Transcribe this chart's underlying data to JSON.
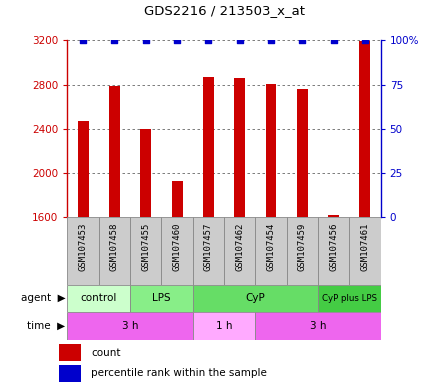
{
  "title": "GDS2216 / 213503_x_at",
  "samples": [
    "GSM107453",
    "GSM107458",
    "GSM107455",
    "GSM107460",
    "GSM107457",
    "GSM107462",
    "GSM107454",
    "GSM107459",
    "GSM107456",
    "GSM107461"
  ],
  "counts": [
    2470,
    2790,
    2395,
    1930,
    2870,
    2855,
    2805,
    2760,
    1620,
    3195
  ],
  "percentile": [
    100,
    100,
    100,
    100,
    100,
    100,
    100,
    100,
    100,
    100
  ],
  "ylim_left": [
    1600,
    3200
  ],
  "ylim_right": [
    0,
    100
  ],
  "yticks_left": [
    1600,
    2000,
    2400,
    2800,
    3200
  ],
  "yticks_right": [
    0,
    25,
    50,
    75,
    100
  ],
  "bar_color": "#cc0000",
  "dot_color": "#0000cc",
  "agent_groups": [
    {
      "label": "control",
      "start": 0,
      "end": 2,
      "color": "#ccffcc"
    },
    {
      "label": "LPS",
      "start": 2,
      "end": 4,
      "color": "#88ee88"
    },
    {
      "label": "CyP",
      "start": 4,
      "end": 8,
      "color": "#66dd66"
    },
    {
      "label": "CyP plus LPS",
      "start": 8,
      "end": 10,
      "color": "#44cc44"
    }
  ],
  "time_groups": [
    {
      "label": "3 h",
      "start": 0,
      "end": 4,
      "color": "#ee66ee"
    },
    {
      "label": "1 h",
      "start": 4,
      "end": 6,
      "color": "#ffaaff"
    },
    {
      "label": "3 h",
      "start": 6,
      "end": 10,
      "color": "#ee66ee"
    }
  ],
  "legend_count_color": "#cc0000",
  "legend_dot_color": "#0000cc",
  "grid_color": "#666666",
  "left_tick_color": "#cc0000",
  "right_tick_color": "#0000cc",
  "sample_box_color": "#cccccc",
  "sample_box_edge": "#888888"
}
